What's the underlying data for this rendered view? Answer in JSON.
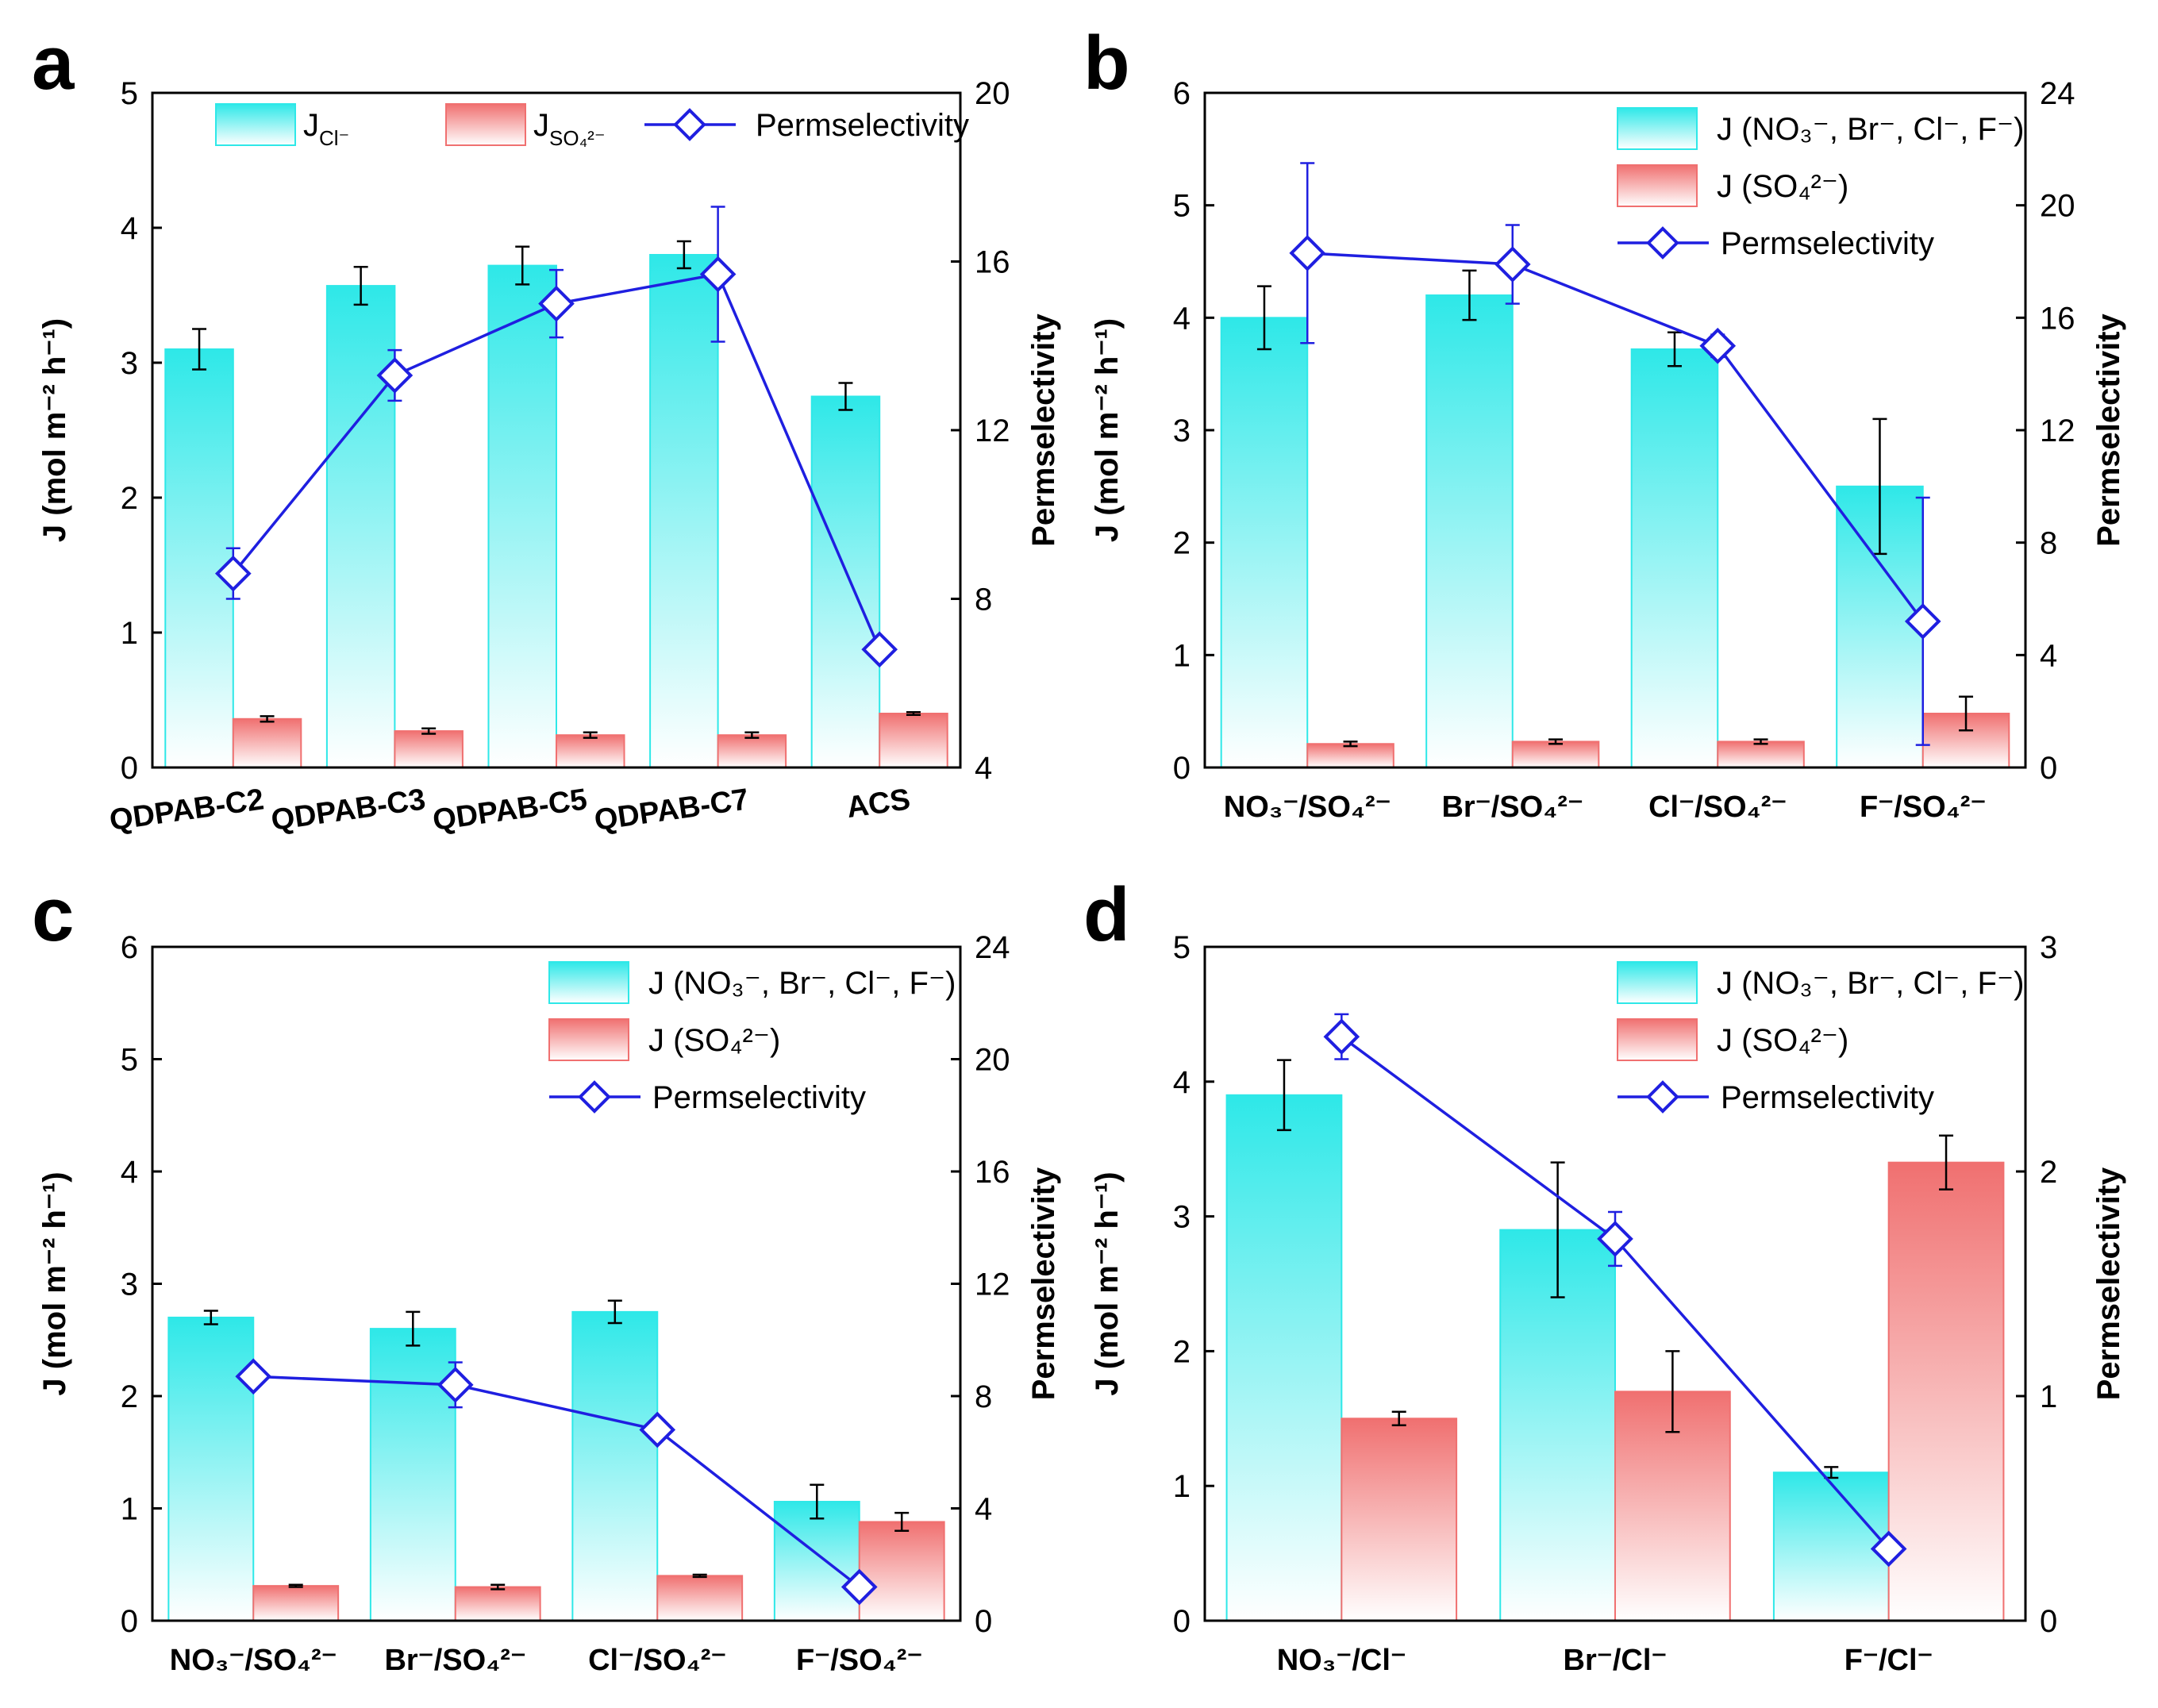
{
  "colors": {
    "cyan_top": "#2EE8E8",
    "cyan_bottom": "#FFFFFF",
    "red_top": "#F07070",
    "red_bottom": "#FFFFFF",
    "line": "#1F1FE0",
    "marker_fill": "#FFFFFF"
  },
  "chart_data": [
    {
      "panel": "a",
      "type": "bar",
      "categories": [
        "QDPAB-C2",
        "QDPAB-C3",
        "QDPAB-C5",
        "QDPAB-C7",
        "ACS"
      ],
      "ylabel": "J (mol m⁻² h⁻¹)",
      "ylim": [
        0,
        5
      ],
      "yticks": [
        "0",
        "1",
        "2",
        "3",
        "4",
        "5"
      ],
      "y2label": "Permselectivity",
      "y2lim": [
        4,
        20
      ],
      "y2ticks": [
        "4",
        "8",
        "12",
        "16",
        "20"
      ],
      "xticks_rotated": true,
      "legend_layout": "row",
      "legend": [
        "J",
        "J",
        "Permselectivity"
      ],
      "legend_subscripts": [
        "Cl⁻",
        "SO₄²⁻",
        ""
      ],
      "series": [
        {
          "name": "J Cl⁻",
          "kind": "bar",
          "color": "cyan",
          "values": [
            3.1,
            3.57,
            3.72,
            3.8,
            2.75
          ],
          "errors": [
            0.15,
            0.14,
            0.14,
            0.1,
            0.1
          ]
        },
        {
          "name": "J SO₄²⁻",
          "kind": "bar",
          "color": "red",
          "values": [
            0.36,
            0.27,
            0.24,
            0.24,
            0.4
          ],
          "errors": [
            0.02,
            0.02,
            0.02,
            0.02,
            0.01
          ]
        },
        {
          "name": "Permselectivity",
          "kind": "line",
          "axis": "right",
          "values": [
            8.6,
            13.3,
            15.0,
            15.7,
            6.8
          ],
          "errors": [
            0.6,
            0.6,
            0.8,
            1.6,
            0
          ]
        }
      ]
    },
    {
      "panel": "b",
      "type": "bar",
      "categories": [
        "NO₃⁻/SO₄²⁻",
        "Br⁻/SO₄²⁻",
        "Cl⁻/SO₄²⁻",
        "F⁻/SO₄²⁻"
      ],
      "ylabel": "J (mol m⁻² h⁻¹)",
      "ylim": [
        0,
        6
      ],
      "yticks": [
        "0",
        "1",
        "2",
        "3",
        "4",
        "5",
        "6"
      ],
      "y2label": "Permselectivity",
      "y2lim": [
        0,
        24
      ],
      "y2ticks": [
        "0",
        "4",
        "8",
        "12",
        "16",
        "20",
        "24"
      ],
      "xticks_rotated": false,
      "legend_layout": "column",
      "legend": [
        "J (NO₃⁻, Br⁻, Cl⁻, F⁻)",
        "J (SO₄²⁻)",
        "Permselectivity"
      ],
      "series": [
        {
          "name": "J (NO₃⁻, Br⁻, Cl⁻, F⁻)",
          "kind": "bar",
          "color": "cyan",
          "values": [
            4.0,
            4.2,
            3.72,
            2.5
          ],
          "errors": [
            0.28,
            0.22,
            0.15,
            0.6
          ]
        },
        {
          "name": "J (SO₄²⁻)",
          "kind": "bar",
          "color": "red",
          "values": [
            0.21,
            0.23,
            0.23,
            0.48
          ],
          "errors": [
            0.02,
            0.02,
            0.02,
            0.15
          ]
        },
        {
          "name": "Permselectivity",
          "kind": "line",
          "axis": "right",
          "values": [
            18.3,
            17.9,
            15.0,
            5.2
          ],
          "errors": [
            3.2,
            1.4,
            0.4,
            4.4
          ]
        }
      ]
    },
    {
      "panel": "c",
      "type": "bar",
      "categories": [
        "NO₃⁻/SO₄²⁻",
        "Br⁻/SO₄²⁻",
        "Cl⁻/SO₄²⁻",
        "F⁻/SO₄²⁻"
      ],
      "ylabel": "J (mol m⁻² h⁻¹)",
      "ylim": [
        0,
        6
      ],
      "yticks": [
        "0",
        "1",
        "2",
        "3",
        "4",
        "5",
        "6"
      ],
      "y2label": "Permselectivity",
      "y2lim": [
        0,
        24
      ],
      "y2ticks": [
        "0",
        "4",
        "8",
        "12",
        "16",
        "20",
        "24"
      ],
      "xticks_rotated": false,
      "legend_layout": "column",
      "legend": [
        "J (NO₃⁻, Br⁻, Cl⁻, F⁻)",
        "J (SO₄²⁻)",
        "Permselectivity"
      ],
      "series": [
        {
          "name": "J (NO₃⁻, Br⁻, Cl⁻, F⁻)",
          "kind": "bar",
          "color": "cyan",
          "values": [
            2.7,
            2.6,
            2.75,
            1.06
          ],
          "errors": [
            0.06,
            0.15,
            0.1,
            0.15
          ]
        },
        {
          "name": "J (SO₄²⁻)",
          "kind": "bar",
          "color": "red",
          "values": [
            0.31,
            0.3,
            0.4,
            0.88
          ],
          "errors": [
            0.01,
            0.02,
            0.01,
            0.08
          ]
        },
        {
          "name": "Permselectivity",
          "kind": "line",
          "axis": "right",
          "values": [
            8.7,
            8.4,
            6.8,
            1.2
          ],
          "errors": [
            0.2,
            0.8,
            0.2,
            0.2
          ]
        }
      ]
    },
    {
      "panel": "d",
      "type": "bar",
      "categories": [
        "NO₃⁻/Cl⁻",
        "Br⁻/Cl⁻",
        "F⁻/Cl⁻"
      ],
      "ylabel": "J (mol m⁻² h⁻¹)",
      "ylim": [
        0,
        5
      ],
      "yticks": [
        "0",
        "1",
        "2",
        "3",
        "4",
        "5"
      ],
      "y2label": "Permselectivity",
      "y2lim": [
        0,
        3
      ],
      "y2ticks": [
        "0",
        "1",
        "2",
        "3"
      ],
      "xticks_rotated": false,
      "legend_layout": "column",
      "legend": [
        "J (NO₃⁻, Br⁻, Cl⁻, F⁻)",
        "J (SO₄²⁻)",
        "Permselectivity"
      ],
      "series": [
        {
          "name": "J (NO₃⁻, Br⁻, Cl⁻, F⁻)",
          "kind": "bar",
          "color": "cyan",
          "values": [
            3.9,
            2.9,
            1.1
          ],
          "errors": [
            0.26,
            0.5,
            0.04
          ]
        },
        {
          "name": "J (SO₄²⁻)",
          "kind": "bar",
          "color": "red",
          "values": [
            1.5,
            1.7,
            3.4
          ],
          "errors": [
            0.05,
            0.3,
            0.2
          ]
        },
        {
          "name": "Permselectivity",
          "kind": "line",
          "axis": "right",
          "values": [
            2.6,
            1.7,
            0.32
          ],
          "errors": [
            0.1,
            0.12,
            0.0
          ]
        }
      ]
    }
  ]
}
